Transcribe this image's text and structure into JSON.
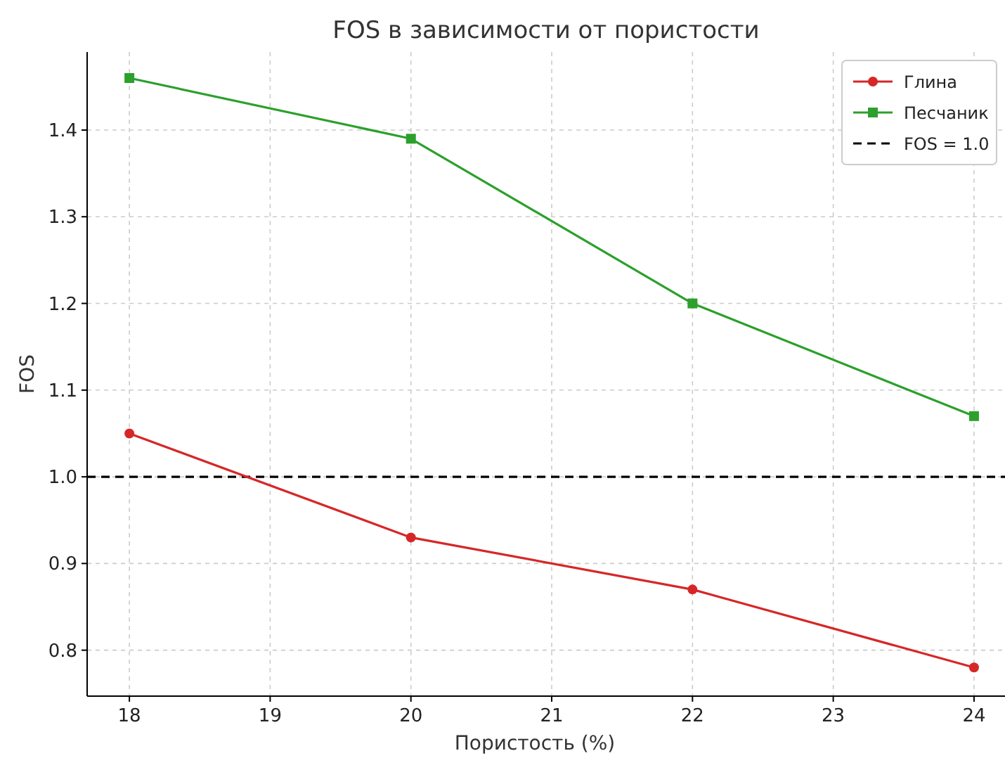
{
  "chart_data": {
    "type": "line",
    "title": "FOS в зависимости от пористости",
    "xlabel": "Пористость (%)",
    "ylabel": "FOS",
    "x": [
      18,
      20,
      22,
      24
    ],
    "series": [
      {
        "name": "Глина",
        "color": "#d62728",
        "values": [
          1.05,
          0.93,
          0.87,
          0.78
        ],
        "marker": "circle"
      },
      {
        "name": "Песчаник",
        "color": "#2ca02c",
        "values": [
          1.46,
          1.39,
          1.2,
          1.07
        ],
        "marker": "square"
      }
    ],
    "ref_lines": [
      {
        "axis": "y",
        "value": 1.0,
        "label": "FOS = 1.0",
        "color": "#000000",
        "line_style": "dashed"
      }
    ],
    "xlim": [
      17.7,
      24.22
    ],
    "ylim": [
      0.747,
      1.49
    ],
    "xticks": [
      18,
      19,
      20,
      21,
      22,
      23,
      24
    ],
    "yticks": [
      0.8,
      0.9,
      {
        "value": 1,
        "label": "1.0"
      },
      1.1,
      1.2,
      1.3,
      1.4
    ],
    "grid": true,
    "legend": "top right"
  }
}
